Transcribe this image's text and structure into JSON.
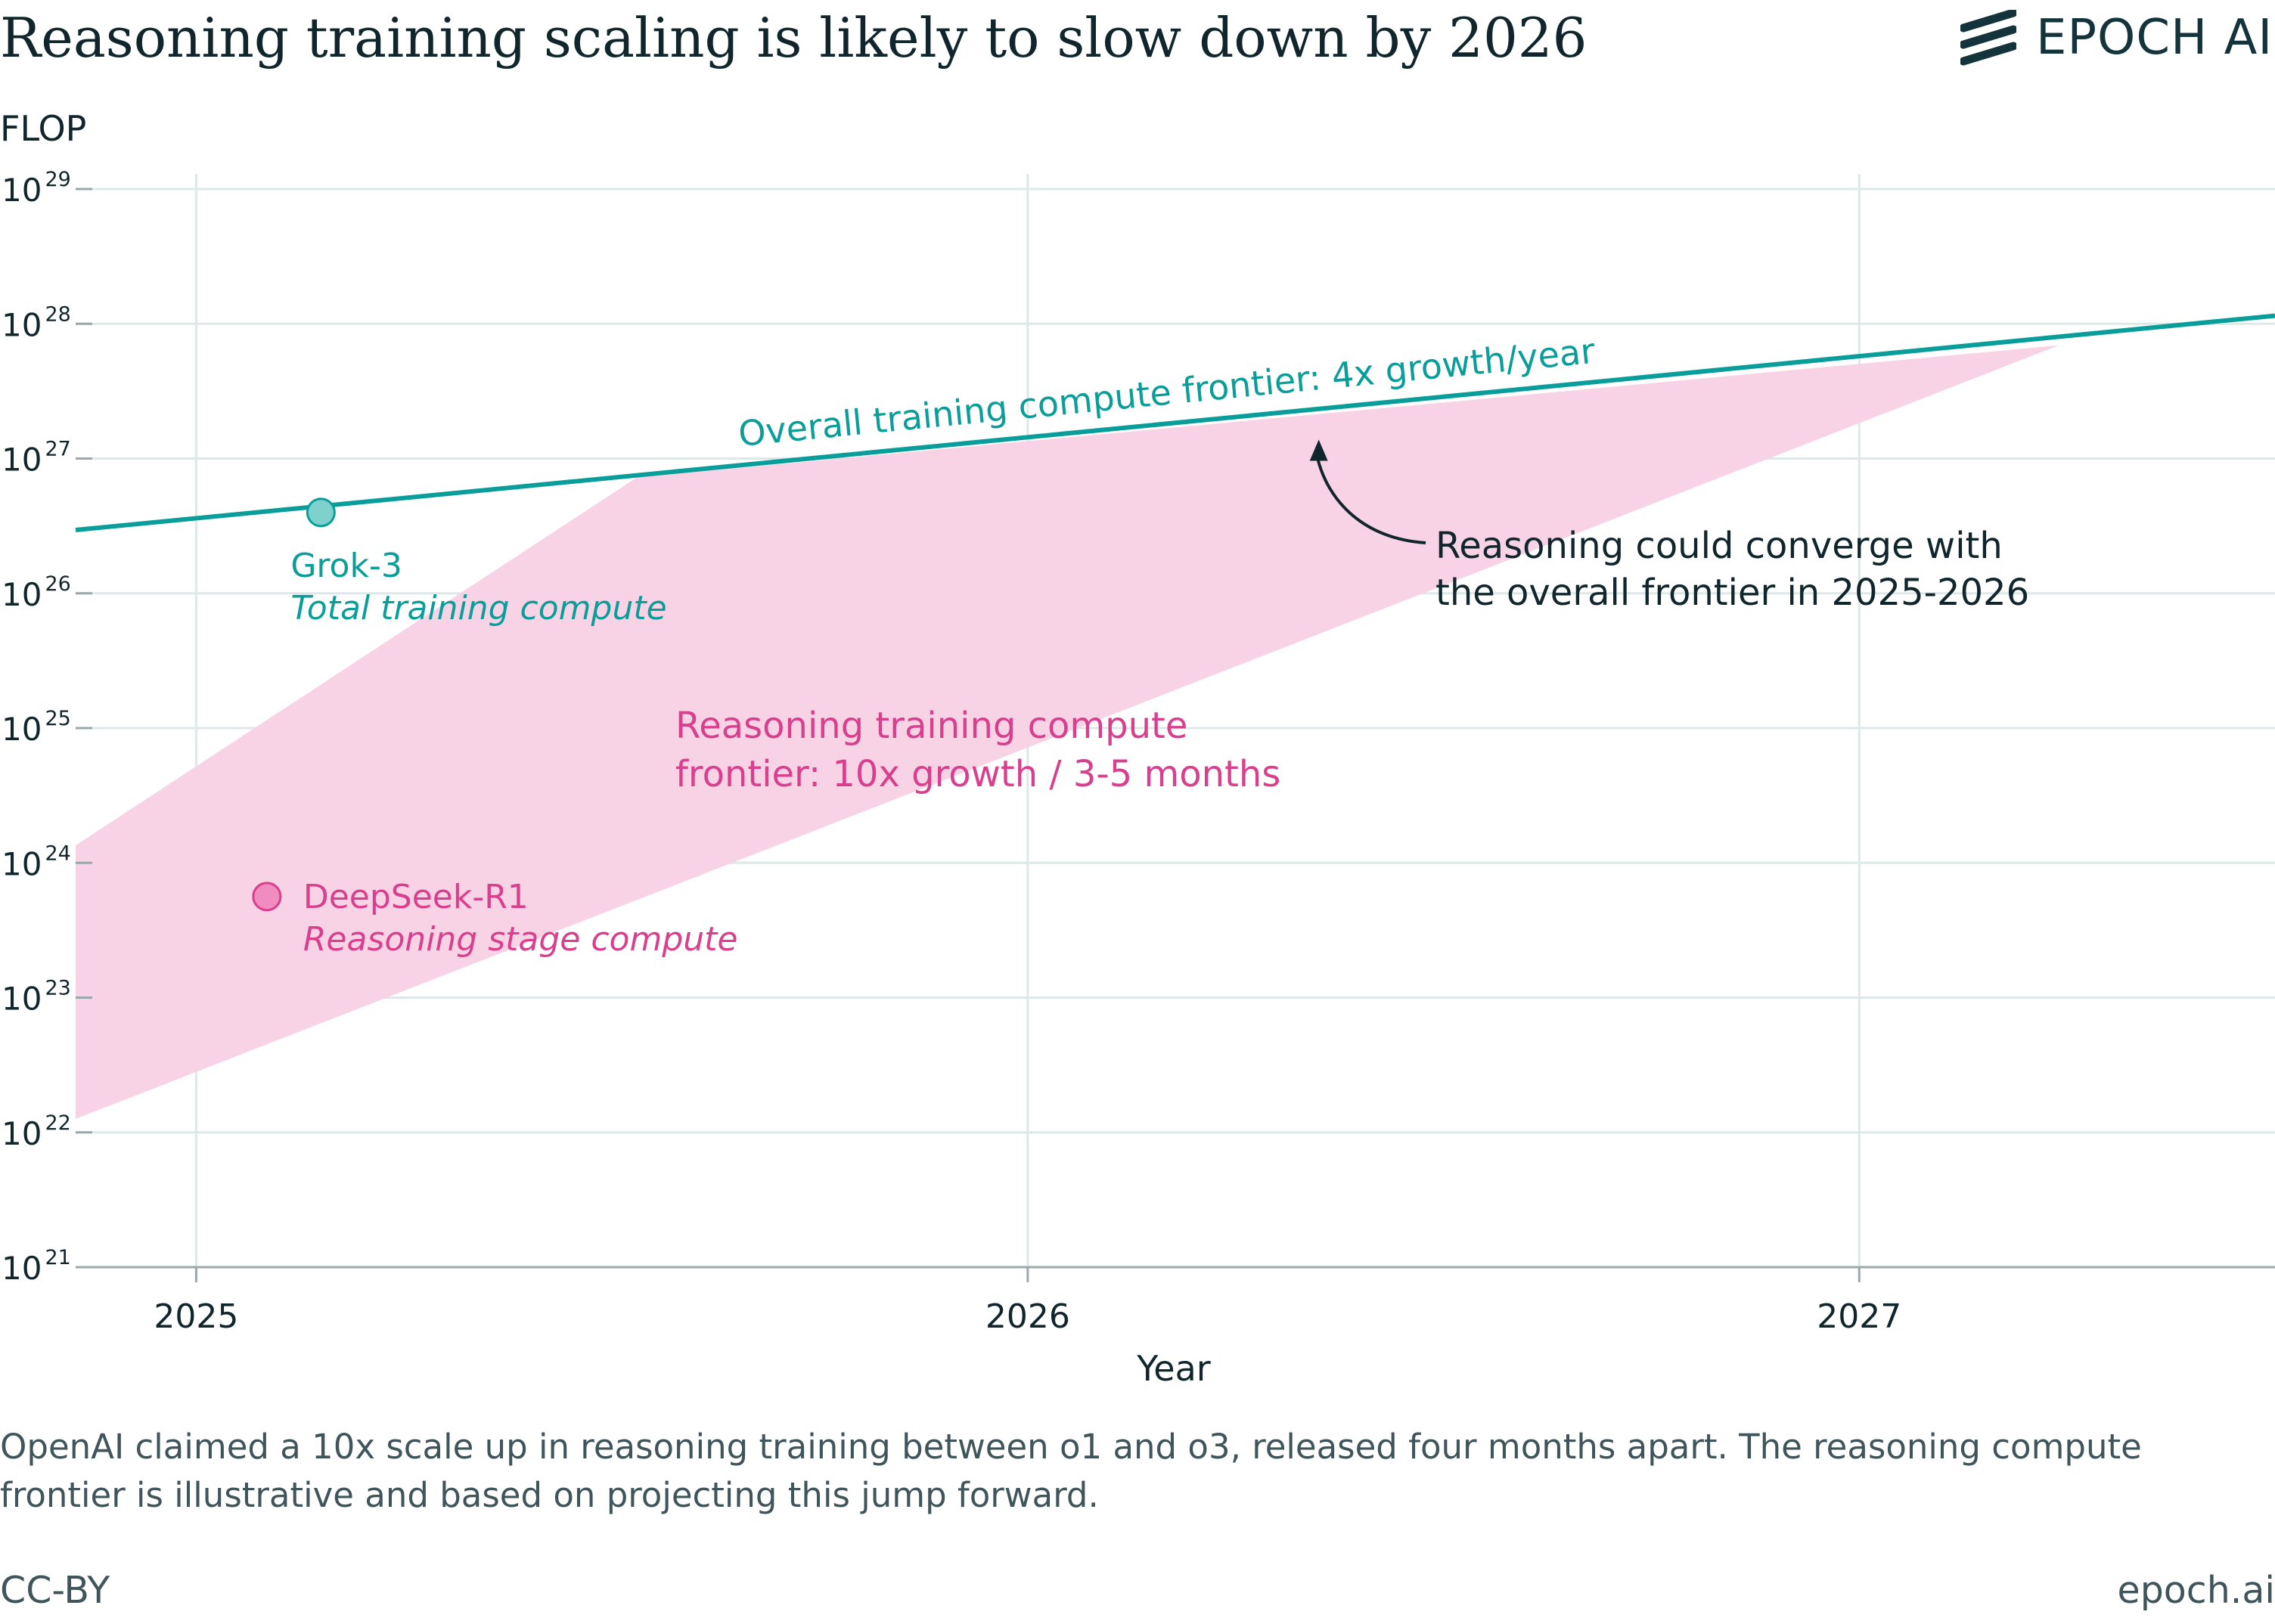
{
  "page": {
    "logo_text": "EPOCH AI",
    "caption": "OpenAI claimed a 10x scale up in reasoning training between o1 and o3, released four months apart. The reasoning compute frontier is illustrative and based on projecting this jump forward.",
    "license": "CC-BY",
    "site": "epoch.ai"
  },
  "chart_data": {
    "type": "line",
    "title": "Reasoning training scaling is likely to slow down by 2026",
    "xlabel": "Year",
    "ylabel": "FLOP",
    "yscale": "log",
    "xlim": [
      2024.855,
      2027.5
    ],
    "ylim": [
      1e+21,
      1e+29
    ],
    "x_ticks": [
      2025,
      2026,
      2027
    ],
    "y_ticks": [
      {
        "exponent": 21,
        "label_base": "10",
        "label_exp": "21"
      },
      {
        "exponent": 22,
        "label_base": "10",
        "label_exp": "22"
      },
      {
        "exponent": 23,
        "label_base": "10",
        "label_exp": "23"
      },
      {
        "exponent": 24,
        "label_base": "10",
        "label_exp": "24"
      },
      {
        "exponent": 25,
        "label_base": "10",
        "label_exp": "25"
      },
      {
        "exponent": 26,
        "label_base": "10",
        "label_exp": "26"
      },
      {
        "exponent": 27,
        "label_base": "10",
        "label_exp": "27"
      },
      {
        "exponent": 28,
        "label_base": "10",
        "label_exp": "28"
      },
      {
        "exponent": 29,
        "label_base": "10",
        "label_exp": "29"
      }
    ],
    "grid": true,
    "colors": {
      "overall": "#0a9e9a",
      "reasoning": "#d93f8c",
      "reasoning_fill": "#f7d3e5",
      "annotation": "#11262c",
      "grid": "#dde8e8"
    },
    "overall_frontier": {
      "label": "Overall training compute frontier: 4x growth/year",
      "growth": "4x per year",
      "points": [
        {
          "x": 2024.855,
          "log10_flop": 26.47
        },
        {
          "x": 2027.5,
          "log10_flop": 28.06
        }
      ]
    },
    "reasoning_frontier": {
      "label_lines": [
        "Reasoning training compute",
        "frontier: 10x growth / 3-5 months"
      ],
      "growth": "10x per 3-5 months",
      "upper": [
        {
          "x": 2024.855,
          "log10_flop": 24.13
        },
        {
          "x": 2025.53,
          "log10_flop": 26.86
        }
      ],
      "lower": [
        {
          "x": 2024.855,
          "log10_flop": 22.1
        },
        {
          "x": 2027.24,
          "log10_flop": 27.84
        }
      ]
    },
    "points": [
      {
        "name": "Grok-3",
        "note": "Total training compute",
        "x": 2025.15,
        "log10_flop": 26.6,
        "series": "overall"
      },
      {
        "name": "DeepSeek-R1",
        "note": "Reasoning stage compute",
        "x": 2025.085,
        "log10_flop": 23.75,
        "series": "reasoning"
      }
    ],
    "annotation": {
      "lines": [
        "Reasoning could converge with",
        "the overall frontier in 2025-2026"
      ],
      "target": {
        "x": 2026.35,
        "log10_flop": 27.14
      }
    }
  }
}
